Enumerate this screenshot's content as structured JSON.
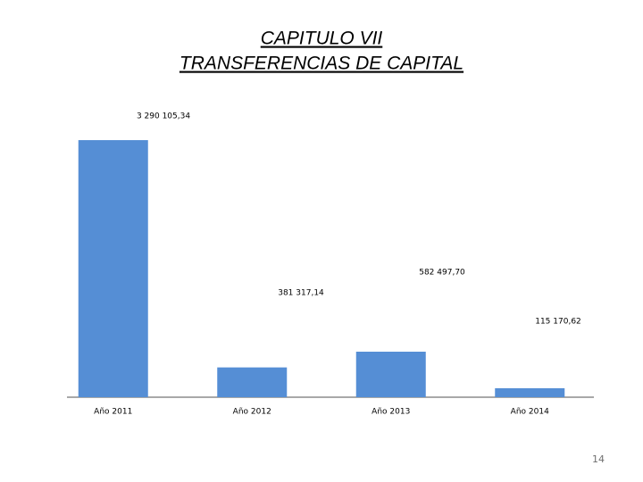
{
  "title_lines": [
    "CAPITULO VII",
    "TRANSFERENCIAS DE CAPITAL"
  ],
  "page_number": "14",
  "chart_data": {
    "type": "bar",
    "categories": [
      "Año 2011",
      "Año 2012",
      "Año 2013",
      "Año 2014"
    ],
    "values": [
      3290105.34,
      381317.14,
      582497.7,
      115170.62
    ],
    "value_labels": [
      "3 290 105,34",
      "381 317,14",
      "582 497,70",
      "115 170,62"
    ],
    "color": "#558ed5"
  }
}
